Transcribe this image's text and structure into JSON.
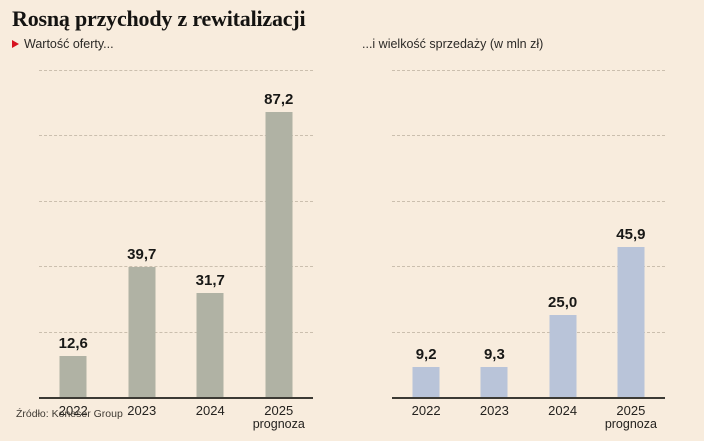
{
  "title": "Rosną przychody z rewitalizacji",
  "kicker_left": "Wartość oferty...",
  "kicker_right": "...i wielkość sprzedaży (w mln zł)",
  "source": "Źródło: Koneser Group",
  "colors": {
    "background": "#f8ecdd",
    "accent_red": "#d6121f",
    "left_bar": "#b0b2a4",
    "right_bar": "#b9c4d9",
    "gridline": "#cbbfae",
    "axis": "#3c3a34"
  },
  "chart_data": [
    {
      "type": "bar",
      "title": "Wartość oferty...",
      "categories": [
        "2022",
        "2023",
        "2024",
        "2025"
      ],
      "category_sublabels": [
        "",
        "",
        "",
        "prognoza"
      ],
      "values": [
        12.6,
        39.7,
        31.7,
        87.2
      ],
      "value_labels": [
        "12,6",
        "39,7",
        "31,7",
        "87,2"
      ],
      "bar_color": "#b0b2a4",
      "xlabel": "",
      "ylabel": "",
      "unit_note": "w mln zł",
      "ylim": [
        0,
        100
      ],
      "gridline_values": [
        20,
        40,
        60,
        80,
        100
      ],
      "grid": "dashed",
      "legend": "none"
    },
    {
      "type": "bar",
      "title": "...i wielkość sprzedaży (w mln zł)",
      "categories": [
        "2022",
        "2023",
        "2024",
        "2025"
      ],
      "category_sublabels": [
        "",
        "",
        "",
        "prognoza"
      ],
      "values": [
        9.2,
        9.3,
        25.0,
        45.9
      ],
      "value_labels": [
        "9,2",
        "9,3",
        "25,0",
        "45,9"
      ],
      "bar_color": "#b9c4d9",
      "xlabel": "",
      "ylabel": "",
      "unit_note": "w mln zł",
      "ylim": [
        0,
        100
      ],
      "gridline_values": [
        20,
        40,
        60,
        80,
        100
      ],
      "grid": "dashed",
      "legend": "none"
    }
  ]
}
